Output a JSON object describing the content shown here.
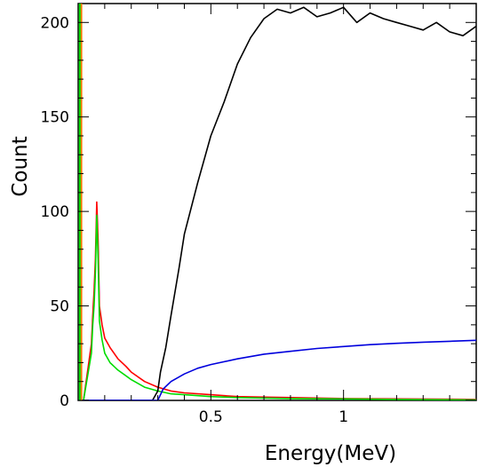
{
  "chart_data": {
    "type": "line",
    "title": "",
    "xlabel": "Energy(MeV)",
    "ylabel": "Count",
    "xlim": [
      0.0,
      1.5
    ],
    "ylim": [
      0,
      210
    ],
    "grid": false,
    "legend": "none",
    "x_ticks": [
      {
        "value": 0.5,
        "label": "0.5"
      },
      {
        "value": 1.0,
        "label": "1"
      }
    ],
    "y_ticks": [
      {
        "value": 0,
        "label": "0"
      },
      {
        "value": 50,
        "label": "50"
      },
      {
        "value": 100,
        "label": "100"
      },
      {
        "value": 150,
        "label": "150"
      },
      {
        "value": 200,
        "label": "200"
      }
    ],
    "series": [
      {
        "color": "#ff0000",
        "x": [
          0.0,
          0.02,
          0.05,
          0.055,
          0.06,
          0.065,
          0.07,
          0.075,
          0.08,
          0.09,
          0.1,
          0.12,
          0.15,
          0.18,
          0.2,
          0.25,
          0.3,
          0.35,
          0.4,
          0.5,
          0.6,
          0.8,
          1.0,
          1.2,
          1.5
        ],
        "y": [
          0,
          0,
          30,
          45,
          58,
          75,
          105,
          85,
          50,
          40,
          33,
          28,
          22,
          18,
          15,
          10,
          7,
          5,
          4,
          3,
          2,
          1.5,
          1,
          0.8,
          0.5
        ]
      },
      {
        "color": "#00dd00",
        "x": [
          0.0,
          0.02,
          0.05,
          0.055,
          0.06,
          0.065,
          0.07,
          0.075,
          0.08,
          0.09,
          0.1,
          0.12,
          0.15,
          0.18,
          0.2,
          0.25,
          0.3,
          0.35,
          0.4,
          0.5,
          0.6,
          0.8,
          1.0,
          1.2,
          1.5
        ],
        "y": [
          0,
          0,
          25,
          40,
          50,
          68,
          98,
          75,
          42,
          32,
          25,
          20,
          16,
          13,
          11,
          7,
          5,
          3.5,
          3,
          2,
          1.5,
          1,
          0.8,
          0.5,
          0.3
        ]
      },
      {
        "color": "#000000",
        "x": [
          0.0,
          0.2,
          0.28,
          0.3,
          0.31,
          0.33,
          0.35,
          0.38,
          0.4,
          0.45,
          0.5,
          0.55,
          0.6,
          0.65,
          0.7,
          0.75,
          0.8,
          0.85,
          0.9,
          0.95,
          1.0,
          1.05,
          1.1,
          1.15,
          1.2,
          1.25,
          1.3,
          1.35,
          1.4,
          1.45,
          1.5
        ],
        "y": [
          0,
          0,
          0,
          5,
          15,
          28,
          45,
          70,
          88,
          115,
          140,
          158,
          178,
          192,
          202,
          207,
          205,
          208,
          203,
          205,
          208,
          200,
          205,
          202,
          200,
          198,
          196,
          200,
          195,
          193,
          198
        ]
      },
      {
        "color": "#0000dd",
        "x": [
          0.0,
          0.3,
          0.32,
          0.35,
          0.4,
          0.45,
          0.5,
          0.6,
          0.7,
          0.8,
          0.9,
          1.0,
          1.1,
          1.2,
          1.3,
          1.4,
          1.5
        ],
        "y": [
          0,
          0,
          6,
          10,
          14,
          17,
          19,
          22,
          24.5,
          26,
          27.5,
          28.5,
          29.5,
          30.2,
          30.8,
          31.3,
          31.8
        ]
      }
    ],
    "spikes": [
      {
        "color": "#ff7700",
        "x": 0.012,
        "y": 210
      },
      {
        "color": "#00dd00",
        "x": 0.006,
        "y": 210
      }
    ]
  }
}
